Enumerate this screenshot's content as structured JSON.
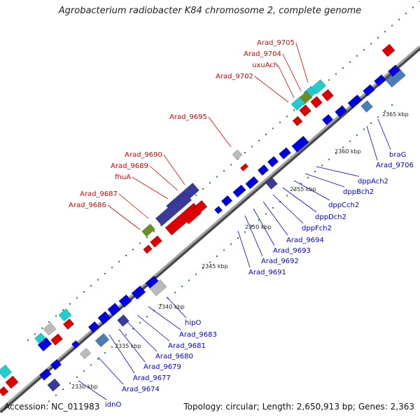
{
  "title": "Agrobacterium radiobacter K84 chromosome 2, complete genome",
  "footer": {
    "accession": "Accession: NC_011983",
    "summary": "Topology: circular; Length: 2,650,913 bp; Genes: 2,363"
  },
  "scale_labels": [
    "2330 kbp",
    "2335 kbp",
    "2340 kbp",
    "2345 kbp",
    "2350 kbp",
    "2355 kbp",
    "2360 kbp",
    "2365 kbp"
  ],
  "gene_labels_top": [
    "Arad_9705",
    "Arad_9704",
    "uxuAch",
    "Arad_9702",
    "Arad_9695",
    "Arad_9690",
    "Arad_9689",
    "fhuA",
    "Arad_9687",
    "Arad_9686"
  ],
  "gene_labels_bottom": [
    "braG",
    "Arad_9706",
    "dppAch2",
    "dppBch2",
    "dppCch2",
    "dppDch2",
    "dppFch2",
    "Arad_9694",
    "Arad_9693",
    "Arad_9692",
    "Arad_9691",
    "hipO",
    "Arad_9683",
    "Arad_9681",
    "Arad_9680",
    "Arad_9679",
    "Arad_9677",
    "Arad_9674",
    "idnO"
  ],
  "colors": {
    "forward_strand": "#dd0000",
    "reverse_strand": "#0000dd",
    "backbone": "#777777",
    "tick": "#228822",
    "purple": "#3a3a99",
    "cyan": "#22cccc",
    "steel": "#4a7fb5",
    "olive": "#6b8e23",
    "gray": "#bbbbbb"
  }
}
